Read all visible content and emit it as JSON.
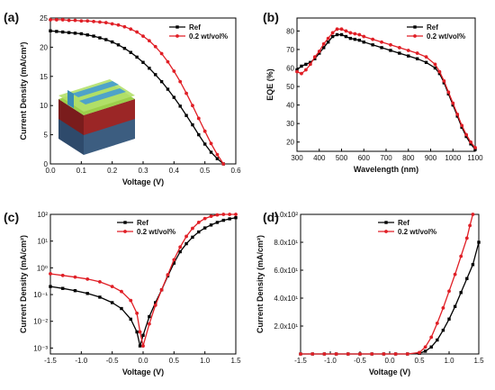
{
  "colors": {
    "ref": "#000000",
    "additive": "#e01f26",
    "axis": "#000000"
  },
  "chart_data": [
    {
      "panel": "(a)",
      "type": "line",
      "xlabel": "Voltage (V)",
      "ylabel": "Current Density (mA/cm²)",
      "xlim": [
        0.0,
        0.6
      ],
      "ylim": [
        0,
        25
      ],
      "xticks": [
        "0.0",
        "0.1",
        "0.2",
        "0.3",
        "0.4",
        "0.5",
        "0.6"
      ],
      "yticks": [
        "0",
        "5",
        "10",
        "15",
        "20",
        "25"
      ],
      "legend_position": "top-right",
      "has_inset_device_image": true,
      "series": [
        {
          "name": "Ref",
          "color": "#000000",
          "x": [
            0,
            0.02,
            0.04,
            0.06,
            0.08,
            0.1,
            0.12,
            0.14,
            0.16,
            0.18,
            0.2,
            0.22,
            0.24,
            0.26,
            0.28,
            0.3,
            0.32,
            0.34,
            0.36,
            0.38,
            0.4,
            0.42,
            0.44,
            0.46,
            0.48,
            0.5,
            0.52,
            0.54,
            0.56
          ],
          "y": [
            22.8,
            22.7,
            22.6,
            22.5,
            22.4,
            22.3,
            22.1,
            21.9,
            21.6,
            21.3,
            20.9,
            20.4,
            19.8,
            19.1,
            18.3,
            17.4,
            16.4,
            15.3,
            14.1,
            12.8,
            11.4,
            9.9,
            8.3,
            6.7,
            5.0,
            3.4,
            2.0,
            0.9,
            0.0
          ]
        },
        {
          "name": "0.2 wt/vol%",
          "color": "#e01f26",
          "x": [
            0,
            0.02,
            0.04,
            0.06,
            0.08,
            0.1,
            0.12,
            0.14,
            0.16,
            0.18,
            0.2,
            0.22,
            0.24,
            0.26,
            0.28,
            0.3,
            0.32,
            0.34,
            0.36,
            0.38,
            0.4,
            0.42,
            0.44,
            0.46,
            0.48,
            0.5,
            0.52,
            0.54,
            0.56
          ],
          "y": [
            24.7,
            24.7,
            24.7,
            24.6,
            24.6,
            24.5,
            24.5,
            24.4,
            24.3,
            24.2,
            24.0,
            23.8,
            23.5,
            23.1,
            22.6,
            21.9,
            21.1,
            20.1,
            18.9,
            17.5,
            15.9,
            14.1,
            12.1,
            10.0,
            7.8,
            5.6,
            3.5,
            1.6,
            0.0
          ]
        }
      ]
    },
    {
      "panel": "(b)",
      "type": "line",
      "xlabel": "Wavelength (nm)",
      "ylabel": "EQE (%)",
      "xlim": [
        300,
        1100
      ],
      "ylim": [
        15,
        87
      ],
      "xticks": [
        "300",
        "400",
        "500",
        "600",
        "700",
        "800",
        "900",
        "1000",
        "1100"
      ],
      "yticks": [
        "20",
        "30",
        "40",
        "50",
        "60",
        "70",
        "80"
      ],
      "legend_position": "top-right",
      "series": [
        {
          "name": "Ref",
          "color": "#000000",
          "x": [
            300,
            320,
            340,
            360,
            380,
            400,
            420,
            440,
            460,
            480,
            500,
            520,
            540,
            560,
            580,
            600,
            640,
            680,
            720,
            760,
            800,
            840,
            880,
            920,
            940,
            960,
            980,
            1000,
            1020,
            1040,
            1060,
            1080,
            1100
          ],
          "y": [
            59,
            61,
            62,
            63,
            65,
            68,
            71,
            74,
            77,
            78,
            78,
            77,
            76,
            75.5,
            75,
            74,
            72.5,
            71,
            69.5,
            68,
            66.5,
            65,
            63,
            60,
            57,
            52,
            46,
            40,
            34,
            28,
            23,
            19,
            16
          ]
        },
        {
          "name": "0.2 wt/vol%",
          "color": "#e01f26",
          "x": [
            300,
            320,
            340,
            360,
            380,
            400,
            420,
            440,
            460,
            480,
            500,
            520,
            540,
            560,
            580,
            600,
            640,
            680,
            720,
            760,
            800,
            840,
            880,
            920,
            940,
            960,
            980,
            1000,
            1020,
            1040,
            1060,
            1080,
            1100
          ],
          "y": [
            58,
            57,
            59,
            62,
            66,
            69,
            73,
            76,
            79,
            81,
            81,
            80,
            79,
            78.5,
            78,
            77,
            75.5,
            74,
            72.5,
            71,
            69.5,
            68,
            66,
            62,
            58,
            53,
            47,
            41,
            35,
            29,
            24,
            20,
            17
          ]
        }
      ]
    },
    {
      "panel": "(c)",
      "type": "line",
      "scale_y": "log",
      "xlabel": "Voltage (V)",
      "ylabel": "Current Density (mA/cm²)",
      "xlim": [
        -1.5,
        1.5
      ],
      "ylim": [
        0.0006,
        100
      ],
      "xticks": [
        "-1.5",
        "-1.0",
        "-0.5",
        "0.0",
        "0.5",
        "1.0",
        "1.5"
      ],
      "yticks": [
        "10⁻³",
        "10⁻²",
        "10⁻¹",
        "10⁰",
        "10¹",
        "10²"
      ],
      "legend_position": "top-center",
      "series": [
        {
          "name": "Ref",
          "color": "#000000",
          "x": [
            -1.5,
            -1.3,
            -1.1,
            -0.9,
            -0.7,
            -0.5,
            -0.35,
            -0.2,
            -0.1,
            -0.05,
            0.0,
            0.1,
            0.2,
            0.3,
            0.4,
            0.5,
            0.6,
            0.7,
            0.8,
            0.9,
            1.0,
            1.1,
            1.2,
            1.3,
            1.4,
            1.5
          ],
          "y": [
            0.2,
            0.17,
            0.14,
            0.11,
            0.08,
            0.05,
            0.03,
            0.012,
            0.004,
            0.0012,
            0.003,
            0.015,
            0.05,
            0.15,
            0.5,
            1.5,
            4,
            8,
            14,
            22,
            31,
            40,
            50,
            60,
            68,
            75
          ]
        },
        {
          "name": "0.2 wt/vol%",
          "color": "#e01f26",
          "x": [
            -1.5,
            -1.3,
            -1.1,
            -0.9,
            -0.7,
            -0.5,
            -0.35,
            -0.2,
            -0.1,
            -0.05,
            0.0,
            0.1,
            0.2,
            0.3,
            0.4,
            0.5,
            0.6,
            0.7,
            0.8,
            0.9,
            1.0,
            1.1,
            1.2,
            1.3,
            1.4,
            1.5
          ],
          "y": [
            0.6,
            0.52,
            0.45,
            0.38,
            0.3,
            0.2,
            0.13,
            0.06,
            0.02,
            0.004,
            0.0012,
            0.008,
            0.04,
            0.15,
            0.55,
            2,
            6,
            15,
            30,
            50,
            70,
            85,
            95,
            100,
            100,
            100
          ]
        }
      ]
    },
    {
      "panel": "(d)",
      "type": "line",
      "xlabel": "Voltage (V)",
      "ylabel": "Current Density (mA/cm²)",
      "xlim": [
        -1.5,
        1.5
      ],
      "ylim": [
        0,
        100
      ],
      "xticks": [
        "-1.5",
        "-1.0",
        "-0.5",
        "0.0",
        "0.5",
        "1.0",
        "1.5"
      ],
      "yticks": [
        "2.0x10¹",
        "4.0x10¹",
        "6.0x10¹",
        "8.0x10¹",
        "1.0x10²"
      ],
      "legend_position": "top-left",
      "series": [
        {
          "name": "Ref",
          "color": "#000000",
          "x": [
            -1.5,
            -1.3,
            -1.1,
            -0.9,
            -0.7,
            -0.5,
            -0.3,
            -0.1,
            0.1,
            0.3,
            0.5,
            0.6,
            0.7,
            0.8,
            0.9,
            1.0,
            1.1,
            1.2,
            1.3,
            1.4,
            1.5
          ],
          "y": [
            0,
            0,
            0,
            0,
            0,
            0,
            0,
            0,
            0,
            0,
            0.5,
            2,
            5,
            10,
            17,
            25,
            34,
            44,
            54,
            64,
            80
          ]
        },
        {
          "name": "0.2 wt/vol%",
          "color": "#e01f26",
          "x": [
            -1.5,
            -1.3,
            -1.1,
            -0.9,
            -0.7,
            -0.5,
            -0.3,
            -0.1,
            0.1,
            0.3,
            0.5,
            0.6,
            0.7,
            0.8,
            0.9,
            1.0,
            1.1,
            1.2,
            1.3,
            1.35,
            1.4
          ],
          "y": [
            0,
            0,
            0,
            0,
            0,
            0,
            0,
            0,
            0,
            0,
            1,
            5,
            12,
            22,
            33,
            45,
            57,
            70,
            83,
            92,
            100
          ]
        }
      ]
    }
  ]
}
